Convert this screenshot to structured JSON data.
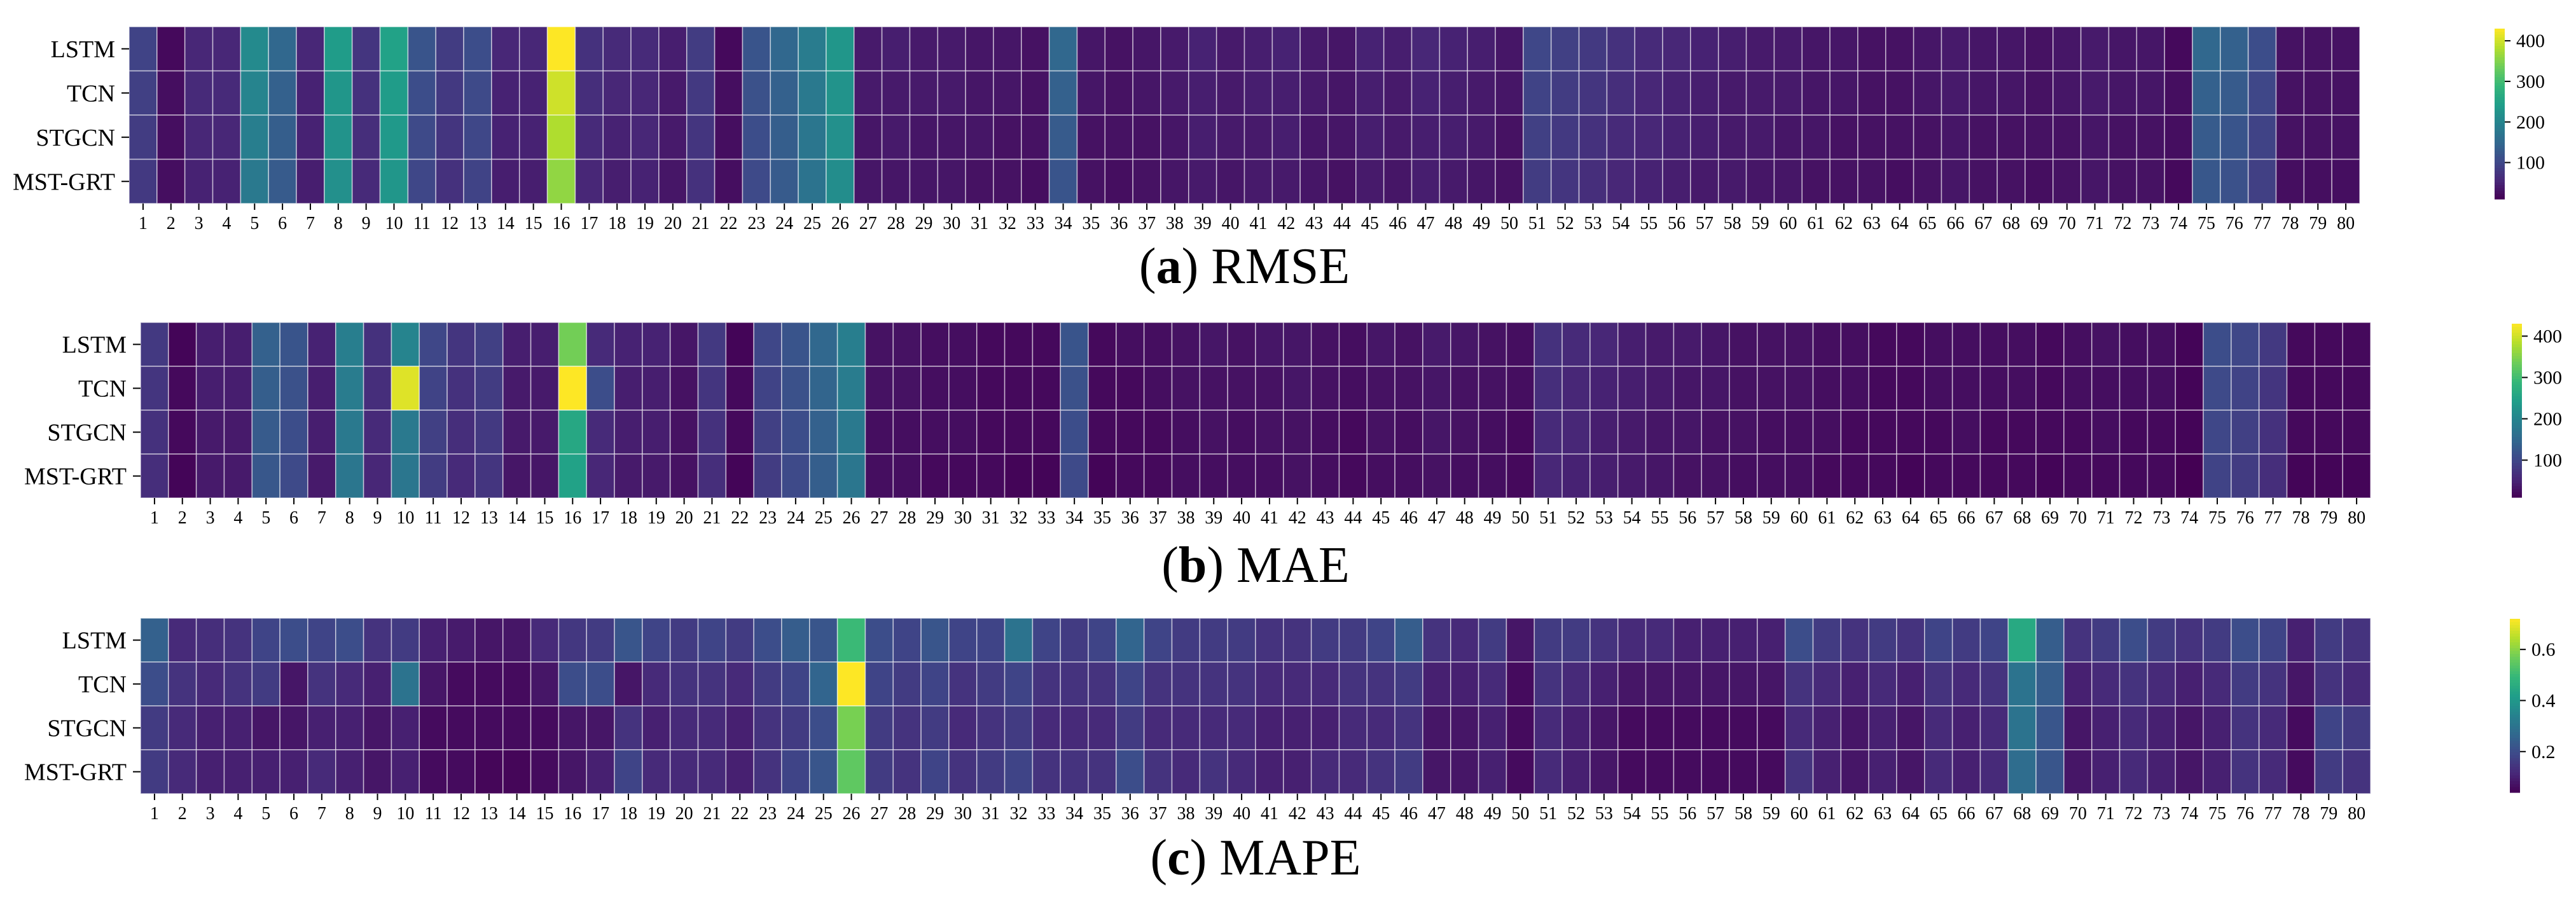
{
  "chart_data": [
    {
      "type": "heatmap",
      "panel_letter": "a",
      "title": "RMSE",
      "rows": [
        "LSTM",
        "TCN",
        "STGCN",
        "MST-GRT"
      ],
      "columns": [
        "1",
        "2",
        "3",
        "4",
        "5",
        "6",
        "7",
        "8",
        "9",
        "10",
        "11",
        "12",
        "13",
        "14",
        "15",
        "16",
        "17",
        "18",
        "19",
        "20",
        "21",
        "22",
        "23",
        "24",
        "25",
        "26",
        "27",
        "28",
        "29",
        "30",
        "31",
        "32",
        "33",
        "34",
        "35",
        "36",
        "37",
        "38",
        "39",
        "40",
        "41",
        "42",
        "43",
        "44",
        "45",
        "46",
        "47",
        "48",
        "49",
        "50",
        "51",
        "52",
        "53",
        "54",
        "55",
        "56",
        "57",
        "58",
        "59",
        "60",
        "61",
        "62",
        "63",
        "64",
        "65",
        "66",
        "67",
        "68",
        "69",
        "70",
        "71",
        "72",
        "73",
        "74",
        "75",
        "76",
        "77",
        "78",
        "79",
        "80"
      ],
      "values": [
        [
          95,
          20,
          55,
          55,
          210,
          150,
          55,
          240,
          75,
          250,
          120,
          85,
          110,
          55,
          55,
          430,
          70,
          60,
          60,
          45,
          85,
          20,
          120,
          150,
          185,
          230,
          40,
          45,
          40,
          40,
          35,
          35,
          30,
          150,
          35,
          30,
          35,
          40,
          50,
          40,
          45,
          50,
          40,
          35,
          50,
          45,
          55,
          50,
          45,
          35,
          100,
          90,
          80,
          70,
          60,
          55,
          50,
          45,
          40,
          40,
          35,
          35,
          30,
          30,
          35,
          40,
          35,
          35,
          30,
          35,
          40,
          35,
          35,
          20,
          150,
          140,
          110,
          30,
          30,
          30
        ],
        [
          90,
          25,
          60,
          60,
          200,
          140,
          50,
          230,
          70,
          240,
          110,
          80,
          105,
          50,
          50,
          400,
          65,
          55,
          55,
          40,
          80,
          25,
          115,
          140,
          180,
          225,
          40,
          40,
          40,
          40,
          35,
          35,
          30,
          140,
          35,
          30,
          35,
          40,
          45,
          40,
          45,
          45,
          40,
          35,
          45,
          40,
          50,
          45,
          40,
          35,
          95,
          85,
          75,
          65,
          55,
          50,
          45,
          40,
          40,
          40,
          35,
          35,
          30,
          30,
          35,
          40,
          35,
          35,
          30,
          35,
          40,
          35,
          35,
          25,
          140,
          130,
          100,
          30,
          30,
          30
        ],
        [
          85,
          25,
          55,
          55,
          190,
          135,
          50,
          225,
          65,
          235,
          105,
          75,
          100,
          50,
          50,
          380,
          60,
          50,
          55,
          40,
          75,
          25,
          110,
          135,
          175,
          220,
          35,
          40,
          35,
          35,
          35,
          30,
          30,
          130,
          30,
          30,
          30,
          35,
          45,
          40,
          40,
          45,
          35,
          35,
          45,
          40,
          45,
          45,
          40,
          30,
          90,
          80,
          70,
          60,
          55,
          50,
          45,
          40,
          40,
          35,
          35,
          30,
          30,
          30,
          30,
          35,
          30,
          30,
          30,
          30,
          35,
          30,
          30,
          25,
          130,
          120,
          95,
          30,
          30,
          30
        ],
        [
          80,
          25,
          50,
          50,
          180,
          130,
          45,
          220,
          60,
          230,
          100,
          70,
          95,
          45,
          45,
          360,
          55,
          45,
          50,
          35,
          70,
          25,
          105,
          130,
          170,
          215,
          35,
          35,
          35,
          35,
          30,
          30,
          25,
          120,
          30,
          25,
          30,
          35,
          40,
          35,
          40,
          40,
          35,
          30,
          40,
          35,
          45,
          40,
          35,
          30,
          85,
          75,
          65,
          55,
          50,
          45,
          40,
          40,
          35,
          35,
          30,
          30,
          30,
          25,
          30,
          35,
          30,
          30,
          25,
          30,
          35,
          30,
          30,
          20,
          125,
          115,
          90,
          25,
          25,
          25
        ]
      ],
      "vmin": 10,
      "vmax": 430,
      "colorbar": {
        "ticks": [
          "100",
          "200",
          "300",
          "400"
        ],
        "tick_values": [
          100,
          200,
          300,
          400
        ],
        "colormap": "viridis"
      }
    },
    {
      "type": "heatmap",
      "panel_letter": "b",
      "title": "MAE",
      "rows": [
        "LSTM",
        "TCN",
        "STGCN",
        "MST-GRT"
      ],
      "columns": [
        "1",
        "2",
        "3",
        "4",
        "5",
        "6",
        "7",
        "8",
        "9",
        "10",
        "11",
        "12",
        "13",
        "14",
        "15",
        "16",
        "17",
        "18",
        "19",
        "20",
        "21",
        "22",
        "23",
        "24",
        "25",
        "26",
        "27",
        "28",
        "29",
        "30",
        "31",
        "32",
        "33",
        "34",
        "35",
        "36",
        "37",
        "38",
        "39",
        "40",
        "41",
        "42",
        "43",
        "44",
        "45",
        "46",
        "47",
        "48",
        "49",
        "50",
        "51",
        "52",
        "53",
        "54",
        "55",
        "56",
        "57",
        "58",
        "59",
        "60",
        "61",
        "62",
        "63",
        "64",
        "65",
        "66",
        "67",
        "68",
        "69",
        "70",
        "71",
        "72",
        "73",
        "74",
        "75",
        "76",
        "77",
        "78",
        "79",
        "80"
      ],
      "values": [
        [
          80,
          15,
          45,
          45,
          140,
          120,
          50,
          190,
          70,
          200,
          100,
          75,
          90,
          45,
          45,
          340,
          60,
          50,
          50,
          35,
          80,
          15,
          100,
          120,
          150,
          190,
          30,
          30,
          25,
          25,
          20,
          20,
          20,
          120,
          20,
          25,
          25,
          30,
          35,
          30,
          35,
          35,
          30,
          25,
          35,
          30,
          40,
          35,
          30,
          25,
          70,
          60,
          55,
          45,
          40,
          40,
          35,
          30,
          30,
          30,
          25,
          25,
          20,
          20,
          25,
          25,
          25,
          25,
          20,
          25,
          30,
          25,
          25,
          15,
          110,
          100,
          80,
          20,
          20,
          20
        ],
        [
          75,
          20,
          45,
          45,
          135,
          115,
          45,
          185,
          65,
          410,
          95,
          70,
          85,
          40,
          40,
          430,
          110,
          45,
          45,
          30,
          75,
          20,
          95,
          115,
          145,
          185,
          30,
          30,
          25,
          25,
          20,
          20,
          20,
          115,
          20,
          20,
          25,
          30,
          30,
          30,
          30,
          35,
          30,
          25,
          30,
          30,
          35,
          30,
          30,
          25,
          65,
          55,
          50,
          45,
          40,
          35,
          35,
          30,
          30,
          30,
          25,
          25,
          20,
          20,
          25,
          25,
          25,
          25,
          20,
          25,
          25,
          25,
          25,
          15,
          105,
          95,
          75,
          20,
          20,
          20
        ],
        [
          70,
          20,
          40,
          40,
          130,
          110,
          45,
          180,
          60,
          180,
          90,
          65,
          80,
          40,
          40,
          260,
          60,
          45,
          45,
          30,
          70,
          20,
          90,
          110,
          140,
          180,
          25,
          25,
          25,
          25,
          20,
          20,
          20,
          110,
          20,
          20,
          20,
          25,
          30,
          25,
          30,
          30,
          25,
          20,
          30,
          25,
          35,
          30,
          25,
          20,
          60,
          55,
          45,
          40,
          35,
          35,
          30,
          30,
          25,
          25,
          25,
          20,
          20,
          20,
          20,
          25,
          20,
          20,
          20,
          20,
          25,
          20,
          20,
          15,
          100,
          90,
          70,
          20,
          20,
          20
        ],
        [
          65,
          15,
          40,
          40,
          125,
          105,
          40,
          175,
          55,
          175,
          85,
          60,
          75,
          35,
          35,
          250,
          55,
          40,
          40,
          30,
          65,
          15,
          85,
          105,
          135,
          175,
          25,
          25,
          20,
          20,
          20,
          15,
          15,
          105,
          15,
          20,
          20,
          25,
          25,
          25,
          25,
          30,
          25,
          20,
          25,
          25,
          30,
          25,
          25,
          20,
          55,
          50,
          45,
          40,
          35,
          30,
          30,
          25,
          25,
          25,
          20,
          20,
          20,
          15,
          20,
          20,
          20,
          20,
          15,
          20,
          20,
          20,
          20,
          10,
          95,
          85,
          65,
          15,
          15,
          15
        ]
      ],
      "vmin": 10,
      "vmax": 430,
      "colorbar": {
        "ticks": [
          "100",
          "200",
          "300",
          "400"
        ],
        "tick_values": [
          100,
          200,
          300,
          400
        ],
        "colormap": "viridis"
      }
    },
    {
      "type": "heatmap",
      "panel_letter": "c",
      "title": "MAPE",
      "rows": [
        "LSTM",
        "TCN",
        "STGCN",
        "MST-GRT"
      ],
      "columns": [
        "1",
        "2",
        "3",
        "4",
        "5",
        "6",
        "7",
        "8",
        "9",
        "10",
        "11",
        "12",
        "13",
        "14",
        "15",
        "16",
        "17",
        "18",
        "19",
        "20",
        "21",
        "22",
        "23",
        "24",
        "25",
        "26",
        "27",
        "28",
        "29",
        "30",
        "31",
        "32",
        "33",
        "34",
        "35",
        "36",
        "37",
        "38",
        "39",
        "40",
        "41",
        "42",
        "43",
        "44",
        "45",
        "46",
        "47",
        "48",
        "49",
        "50",
        "51",
        "52",
        "53",
        "54",
        "55",
        "56",
        "57",
        "58",
        "59",
        "60",
        "61",
        "62",
        "63",
        "64",
        "65",
        "66",
        "67",
        "68",
        "69",
        "70",
        "71",
        "72",
        "73",
        "74",
        "75",
        "76",
        "77",
        "78",
        "79",
        "80"
      ],
      "values": [
        [
          0.25,
          0.12,
          0.13,
          0.14,
          0.18,
          0.2,
          0.18,
          0.2,
          0.14,
          0.16,
          0.1,
          0.09,
          0.08,
          0.08,
          0.12,
          0.15,
          0.16,
          0.22,
          0.18,
          0.16,
          0.18,
          0.16,
          0.2,
          0.24,
          0.22,
          0.5,
          0.2,
          0.18,
          0.22,
          0.18,
          0.18,
          0.3,
          0.18,
          0.16,
          0.18,
          0.26,
          0.18,
          0.16,
          0.16,
          0.16,
          0.14,
          0.14,
          0.16,
          0.16,
          0.18,
          0.24,
          0.14,
          0.12,
          0.16,
          0.08,
          0.16,
          0.16,
          0.14,
          0.12,
          0.12,
          0.1,
          0.1,
          0.1,
          0.1,
          0.2,
          0.16,
          0.14,
          0.16,
          0.14,
          0.18,
          0.16,
          0.18,
          0.45,
          0.24,
          0.14,
          0.16,
          0.2,
          0.16,
          0.14,
          0.16,
          0.2,
          0.18,
          0.1,
          0.16,
          0.14
        ],
        [
          0.2,
          0.14,
          0.12,
          0.14,
          0.16,
          0.08,
          0.14,
          0.12,
          0.1,
          0.3,
          0.08,
          0.06,
          0.06,
          0.06,
          0.08,
          0.2,
          0.2,
          0.08,
          0.12,
          0.14,
          0.14,
          0.12,
          0.16,
          0.18,
          0.26,
          0.72,
          0.18,
          0.16,
          0.18,
          0.14,
          0.16,
          0.18,
          0.14,
          0.14,
          0.14,
          0.18,
          0.14,
          0.14,
          0.14,
          0.14,
          0.12,
          0.12,
          0.12,
          0.14,
          0.14,
          0.16,
          0.1,
          0.1,
          0.12,
          0.06,
          0.14,
          0.12,
          0.1,
          0.08,
          0.08,
          0.08,
          0.08,
          0.08,
          0.08,
          0.14,
          0.12,
          0.1,
          0.12,
          0.1,
          0.14,
          0.12,
          0.14,
          0.3,
          0.24,
          0.1,
          0.12,
          0.14,
          0.12,
          0.1,
          0.12,
          0.16,
          0.14,
          0.08,
          0.14,
          0.12
        ],
        [
          0.16,
          0.12,
          0.1,
          0.1,
          0.08,
          0.08,
          0.1,
          0.1,
          0.08,
          0.1,
          0.06,
          0.06,
          0.06,
          0.06,
          0.06,
          0.08,
          0.08,
          0.14,
          0.1,
          0.12,
          0.12,
          0.1,
          0.14,
          0.16,
          0.2,
          0.58,
          0.16,
          0.14,
          0.16,
          0.12,
          0.14,
          0.16,
          0.12,
          0.12,
          0.12,
          0.16,
          0.12,
          0.12,
          0.12,
          0.12,
          0.1,
          0.1,
          0.1,
          0.12,
          0.12,
          0.14,
          0.08,
          0.08,
          0.1,
          0.06,
          0.12,
          0.1,
          0.08,
          0.06,
          0.06,
          0.06,
          0.06,
          0.06,
          0.06,
          0.12,
          0.1,
          0.08,
          0.1,
          0.08,
          0.12,
          0.1,
          0.12,
          0.3,
          0.22,
          0.08,
          0.1,
          0.12,
          0.1,
          0.08,
          0.1,
          0.14,
          0.12,
          0.06,
          0.18,
          0.16
        ],
        [
          0.16,
          0.12,
          0.1,
          0.1,
          0.1,
          0.1,
          0.12,
          0.1,
          0.08,
          0.1,
          0.06,
          0.06,
          0.05,
          0.05,
          0.06,
          0.08,
          0.1,
          0.18,
          0.12,
          0.12,
          0.12,
          0.1,
          0.14,
          0.18,
          0.22,
          0.55,
          0.16,
          0.14,
          0.18,
          0.14,
          0.16,
          0.18,
          0.14,
          0.14,
          0.14,
          0.2,
          0.14,
          0.12,
          0.14,
          0.12,
          0.1,
          0.1,
          0.12,
          0.12,
          0.14,
          0.16,
          0.08,
          0.08,
          0.1,
          0.06,
          0.12,
          0.1,
          0.08,
          0.06,
          0.06,
          0.06,
          0.06,
          0.06,
          0.06,
          0.14,
          0.1,
          0.08,
          0.1,
          0.08,
          0.12,
          0.1,
          0.12,
          0.28,
          0.22,
          0.08,
          0.1,
          0.12,
          0.1,
          0.08,
          0.1,
          0.14,
          0.12,
          0.06,
          0.16,
          0.14
        ]
      ],
      "vmin": 0.04,
      "vmax": 0.72,
      "colorbar": {
        "ticks": [
          "0.2",
          "0.4",
          "0.6"
        ],
        "tick_values": [
          0.2,
          0.4,
          0.6
        ],
        "colormap": "viridis"
      }
    }
  ]
}
